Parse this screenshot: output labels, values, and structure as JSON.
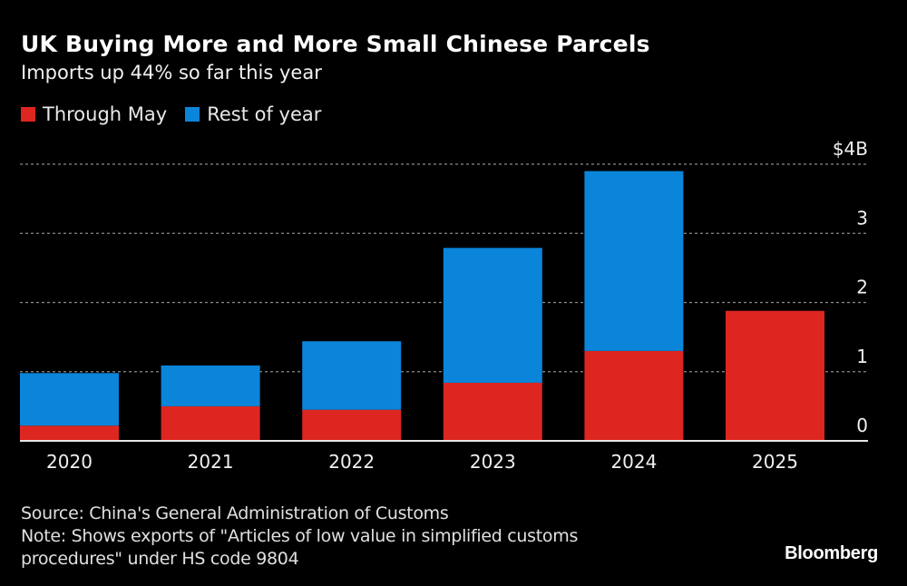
{
  "header": {
    "title": "UK Buying More and More Small Chinese Parcels",
    "subtitle": "Imports up 44% so far this year"
  },
  "legend": [
    {
      "label": "Through May",
      "color": "#dd2620"
    },
    {
      "label": "Rest of year",
      "color": "#0a85d9"
    }
  ],
  "footer": {
    "source": "Source: China's General Administration of Customs",
    "note_line1": "Note: Shows exports of \"Articles of low value in simplified customs",
    "note_line2": "procedures\" under HS code 9804",
    "brand": "Bloomberg"
  },
  "chart_data": {
    "type": "bar",
    "stacked": true,
    "title": "UK Buying More and More Small Chinese Parcels",
    "subtitle": "Imports up 44% so far this year",
    "categories": [
      "2020",
      "2021",
      "2022",
      "2023",
      "2024",
      "2025"
    ],
    "series": [
      {
        "name": "Through May",
        "color": "#dd2620",
        "values": [
          0.22,
          0.5,
          0.45,
          0.84,
          1.3,
          1.88
        ]
      },
      {
        "name": "Rest of year",
        "color": "#0a85d9",
        "values": [
          0.76,
          0.59,
          0.99,
          1.95,
          2.6,
          null
        ]
      }
    ],
    "xlabel": "",
    "ylabel": "",
    "ylim": [
      0,
      4
    ],
    "yticks": [
      0,
      1,
      2,
      3,
      4
    ],
    "ytick_labels": [
      "0",
      "1",
      "2",
      "3",
      "$4B"
    ],
    "y_axis_side": "right",
    "grid": true,
    "legend_position": "top-left"
  }
}
